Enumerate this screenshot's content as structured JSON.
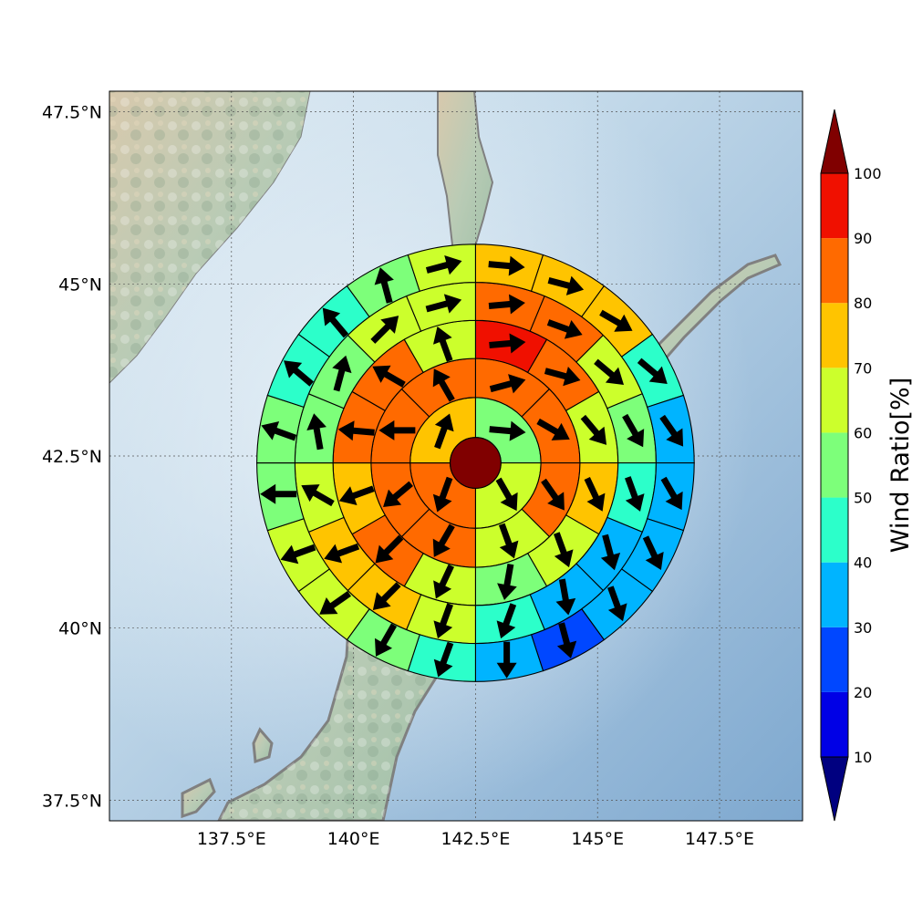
{
  "chart_data": {
    "type": "heatmap",
    "subtype": "polar sector map with wind vectors over geographic map",
    "map": {
      "lon_range": [
        135.0,
        149.2
      ],
      "lat_range": [
        37.2,
        47.8
      ],
      "lon_ticks": [
        137.5,
        140,
        142.5,
        145,
        147.5
      ],
      "lon_tick_labels": [
        "137.5°E",
        "140°E",
        "142.5°E",
        "145°E",
        "147.5°E"
      ],
      "lat_ticks": [
        37.5,
        40,
        42.5,
        45,
        47.5
      ],
      "lat_tick_labels": [
        "37.5°N",
        "40°N",
        "42.5°N",
        "45°N",
        "47.5°N"
      ],
      "grid": true,
      "background": "shaded relief with land and ocean",
      "coastline_color": "#808080"
    },
    "center": {
      "lon": 142.5,
      "lat": 42.4
    },
    "ring_radii_deg": [
      0.52,
      1.34,
      2.14,
      2.92,
      3.7,
      4.48
    ],
    "center_value": 100,
    "sectors_per_ring": [
      4,
      8,
      12,
      16,
      20
    ],
    "rings": [
      {
        "values": [
          55,
          65,
          85,
          75
        ],
        "directions": [
          95,
          150,
          200,
          20
        ]
      },
      {
        "values": [
          85,
          85,
          80,
          60,
          85,
          85,
          85,
          80
        ],
        "directions": [
          75,
          120,
          145,
          160,
          210,
          230,
          270,
          330
        ]
      },
      {
        "values": [
          95,
          80,
          65,
          75,
          65,
          55,
          65,
          85,
          75,
          85,
          85,
          65
        ],
        "directions": [
          85,
          105,
          140,
          155,
          160,
          190,
          205,
          225,
          250,
          275,
          300,
          340
        ]
      },
      {
        "values": [
          85,
          85,
          65,
          55,
          45,
          35,
          35,
          45,
          65,
          75,
          75,
          65,
          55,
          55,
          65,
          65
        ],
        "directions": [
          85,
          110,
          130,
          150,
          160,
          165,
          170,
          200,
          200,
          225,
          250,
          300,
          350,
          15,
          45,
          75
        ]
      },
      {
        "values": [
          75,
          75,
          75,
          45,
          35,
          35,
          35,
          35,
          25,
          35,
          45,
          55,
          65,
          65,
          55,
          55,
          45,
          45,
          55,
          65
        ],
        "directions": [
          95,
          105,
          120,
          130,
          145,
          150,
          155,
          160,
          165,
          180,
          200,
          210,
          235,
          250,
          270,
          290,
          310,
          320,
          345,
          75
        ]
      }
    ],
    "colorbar": {
      "label": "Wind Ratio[%]",
      "ticks": [
        10,
        20,
        30,
        40,
        50,
        60,
        70,
        80,
        90,
        100
      ],
      "levels": [
        {
          "range": [
            0,
            10
          ],
          "color": "#000080"
        },
        {
          "range": [
            10,
            20
          ],
          "color": "#0000e6"
        },
        {
          "range": [
            20,
            30
          ],
          "color": "#0047ff"
        },
        {
          "range": [
            30,
            40
          ],
          "color": "#00b4ff"
        },
        {
          "range": [
            40,
            50
          ],
          "color": "#2cffca"
        },
        {
          "range": [
            50,
            60
          ],
          "color": "#7dff7a"
        },
        {
          "range": [
            60,
            70
          ],
          "color": "#ccff2c"
        },
        {
          "range": [
            70,
            80
          ],
          "color": "#ffc400"
        },
        {
          "range": [
            80,
            90
          ],
          "color": "#ff6a00"
        },
        {
          "range": [
            90,
            100
          ],
          "color": "#f01000"
        },
        {
          "range": [
            100,
            110
          ],
          "color": "#800000"
        }
      ],
      "extend": "both"
    }
  }
}
